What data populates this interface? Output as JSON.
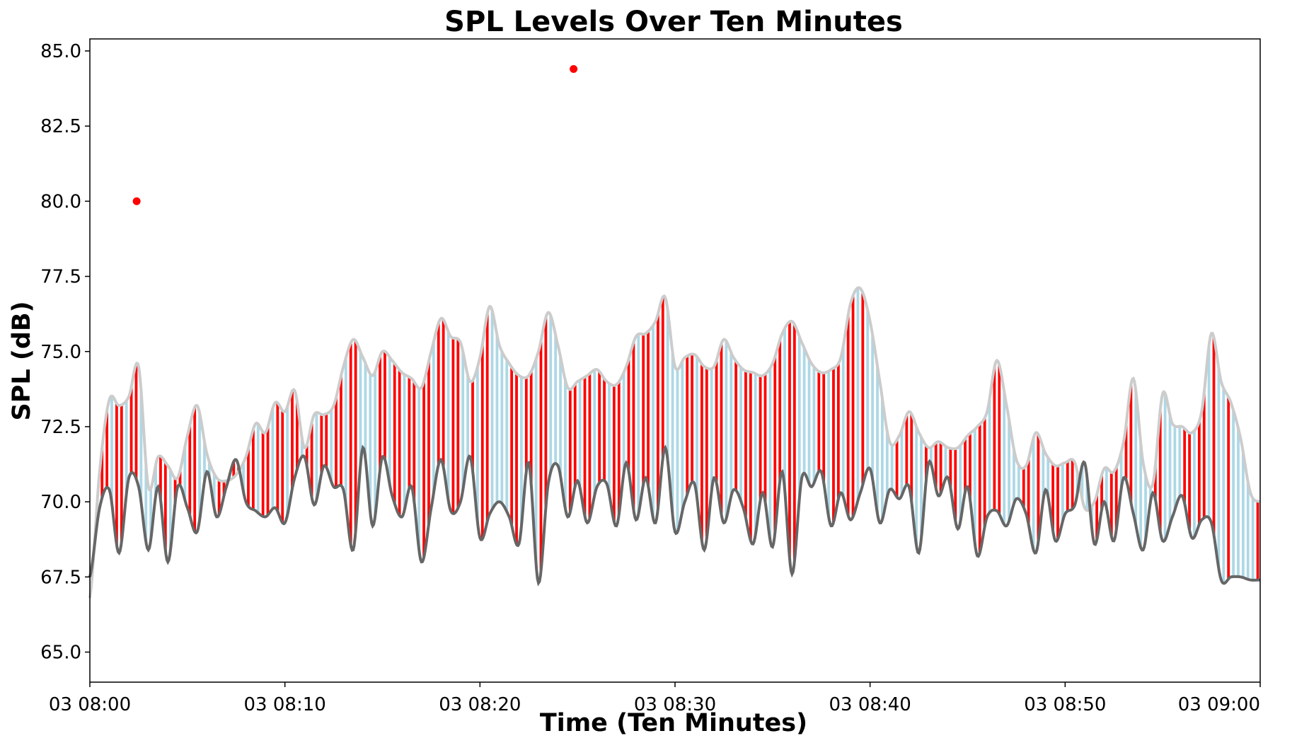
{
  "chart_data": {
    "type": "line",
    "title": "SPL Levels Over Ten Minutes",
    "xlabel": "Time (Ten Minutes)",
    "ylabel": "SPL (dB)",
    "ylim": [
      64,
      85.4
    ],
    "yticks": [
      "65.0",
      "67.5",
      "70.0",
      "72.5",
      "75.0",
      "77.5",
      "80.0",
      "82.5",
      "85.0"
    ],
    "ytick_values": [
      65.0,
      67.5,
      70.0,
      72.5,
      75.0,
      77.5,
      80.0,
      82.5,
      85.0
    ],
    "xlim_minutes": [
      0,
      60
    ],
    "xticks": [
      "03 08:00",
      "03 08:10",
      "03 08:20",
      "03 08:30",
      "03 08:40",
      "03 08:50",
      "03 09:00"
    ],
    "xtick_minutes": [
      0,
      10,
      20,
      30,
      40,
      50,
      60
    ],
    "grid": false,
    "colors": {
      "max_envelope": "#cccccc",
      "min_line": "#666666",
      "positive_bar": "#ff0000",
      "negative_bar": "#add8e6",
      "outlier": "#ff0000"
    },
    "series": [
      {
        "role": "max-envelope",
        "x_minutes": [
          0,
          0.5,
          1,
          1.5,
          2,
          2.5,
          3,
          3.5,
          4,
          4.5,
          5,
          5.5,
          6,
          6.5,
          7,
          7.5,
          8,
          8.5,
          9,
          9.5,
          10,
          10.5,
          11,
          11.5,
          12,
          12.5,
          13,
          13.5,
          14,
          14.5,
          15,
          15.5,
          16,
          16.5,
          17,
          17.5,
          18,
          18.5,
          19,
          19.5,
          20,
          20.5,
          21,
          21.5,
          22,
          22.5,
          23,
          23.5,
          24,
          24.5,
          25,
          25.5,
          26,
          26.5,
          27,
          27.5,
          28,
          28.5,
          29,
          29.5,
          30,
          30.5,
          31,
          31.5,
          32,
          32.5,
          33,
          33.5,
          34,
          34.5,
          35,
          35.5,
          36,
          36.5,
          37,
          37.5,
          38,
          38.5,
          39,
          39.5,
          40,
          40.5,
          41,
          41.5,
          42,
          42.5,
          43,
          43.5,
          44,
          44.5,
          45,
          45.5,
          46,
          46.5,
          47,
          47.5,
          48,
          48.5,
          49,
          49.5,
          50,
          50.5,
          51,
          51.5,
          52,
          52.5,
          53,
          53.5,
          54,
          54.5,
          55,
          55.5,
          56,
          56.5,
          57,
          57.5,
          58,
          58.5,
          59,
          59.5,
          60
        ],
        "values": [
          66.8,
          71.0,
          73.4,
          73.2,
          73.5,
          74.5,
          70.5,
          71.5,
          71.2,
          70.8,
          72.2,
          73.2,
          71.6,
          70.8,
          70.7,
          70.9,
          71.5,
          72.6,
          72.3,
          73.3,
          73.0,
          73.7,
          71.8,
          72.9,
          72.9,
          73.2,
          74.5,
          75.4,
          74.8,
          74.2,
          75.0,
          74.7,
          74.3,
          74.1,
          73.8,
          75.0,
          76.1,
          75.5,
          75.3,
          74.0,
          74.8,
          76.5,
          75.2,
          74.6,
          74.2,
          74.2,
          75.0,
          76.3,
          75.2,
          73.8,
          74.0,
          74.2,
          74.4,
          74.0,
          73.9,
          74.5,
          75.5,
          75.6,
          76.0,
          76.8,
          74.5,
          74.8,
          74.9,
          74.5,
          74.5,
          75.4,
          74.8,
          74.4,
          74.3,
          74.2,
          74.6,
          75.6,
          76.0,
          75.3,
          74.6,
          74.3,
          74.4,
          74.8,
          76.6,
          77.1,
          76.0,
          74.0,
          72.0,
          72.2,
          73.0,
          72.3,
          71.8,
          72.0,
          71.8,
          71.8,
          72.2,
          72.5,
          73.0,
          74.7,
          73.2,
          71.4,
          71.2,
          72.3,
          71.6,
          71.2,
          71.3,
          71.3,
          69.8,
          70.0,
          71.1,
          71.0,
          72.0,
          74.1,
          71.3,
          70.6,
          73.6,
          72.6,
          72.5,
          72.3,
          73.0,
          75.6,
          74.0,
          73.3,
          72.1,
          70.3,
          70.0
        ]
      },
      {
        "role": "min-line",
        "x_minutes": [
          0,
          0.5,
          1,
          1.5,
          2,
          2.5,
          3,
          3.5,
          4,
          4.5,
          5,
          5.5,
          6,
          6.5,
          7,
          7.5,
          8,
          8.5,
          9,
          9.5,
          10,
          10.5,
          11,
          11.5,
          12,
          12.5,
          13,
          13.5,
          14,
          14.5,
          15,
          15.5,
          16,
          16.5,
          17,
          17.5,
          18,
          18.5,
          19,
          19.5,
          20,
          20.5,
          21,
          21.5,
          22,
          22.5,
          23,
          23.5,
          24,
          24.5,
          25,
          25.5,
          26,
          26.5,
          27,
          27.5,
          28,
          28.5,
          29,
          29.5,
          30,
          30.5,
          31,
          31.5,
          32,
          32.5,
          33,
          33.5,
          34,
          34.5,
          35,
          35.5,
          36,
          36.5,
          37,
          37.5,
          38,
          38.5,
          39,
          39.5,
          40,
          40.5,
          41,
          41.5,
          42,
          42.5,
          43,
          43.5,
          44,
          44.5,
          45,
          45.5,
          46,
          46.5,
          47,
          47.5,
          48,
          48.5,
          49,
          49.5,
          50,
          50.5,
          51,
          51.5,
          52,
          52.5,
          53,
          53.5,
          54,
          54.5,
          55,
          55.5,
          56,
          56.5,
          57,
          57.5,
          58,
          58.5,
          59,
          59.5,
          60
        ],
        "values": [
          67.5,
          69.8,
          70.4,
          68.3,
          70.8,
          70.5,
          68.4,
          70.5,
          68.0,
          70.5,
          69.8,
          69.0,
          71.0,
          69.5,
          70.5,
          71.4,
          70.0,
          69.7,
          69.5,
          69.8,
          69.3,
          70.8,
          71.5,
          69.9,
          71.2,
          70.5,
          70.4,
          68.4,
          71.8,
          69.2,
          71.5,
          70.2,
          69.5,
          70.5,
          68.0,
          69.8,
          71.4,
          69.7,
          70.0,
          71.5,
          68.8,
          69.6,
          70.0,
          69.5,
          68.6,
          71.3,
          67.3,
          70.6,
          71.2,
          69.5,
          70.7,
          69.3,
          70.5,
          70.6,
          69.2,
          71.3,
          69.4,
          70.8,
          69.3,
          71.8,
          69.0,
          70.0,
          70.6,
          68.4,
          70.8,
          69.3,
          70.4,
          69.8,
          68.6,
          70.3,
          68.5,
          71.0,
          67.6,
          70.8,
          70.5,
          71.0,
          69.2,
          70.3,
          69.4,
          70.3,
          71.1,
          69.3,
          70.4,
          70.1,
          70.5,
          68.3,
          71.3,
          70.2,
          70.8,
          69.1,
          70.5,
          68.2,
          69.5,
          69.7,
          69.2,
          70.1,
          69.6,
          68.3,
          70.4,
          68.7,
          69.6,
          69.9,
          71.3,
          68.6,
          70.0,
          68.7,
          70.8,
          69.6,
          68.4,
          70.3,
          68.7,
          69.5,
          70.2,
          68.8,
          69.4,
          69.3,
          67.4,
          67.5,
          67.5,
          67.4,
          67.4
        ]
      },
      {
        "role": "outliers",
        "x_minutes": [
          2.4,
          24.8
        ],
        "values": [
          80.0,
          84.4
        ]
      }
    ]
  }
}
